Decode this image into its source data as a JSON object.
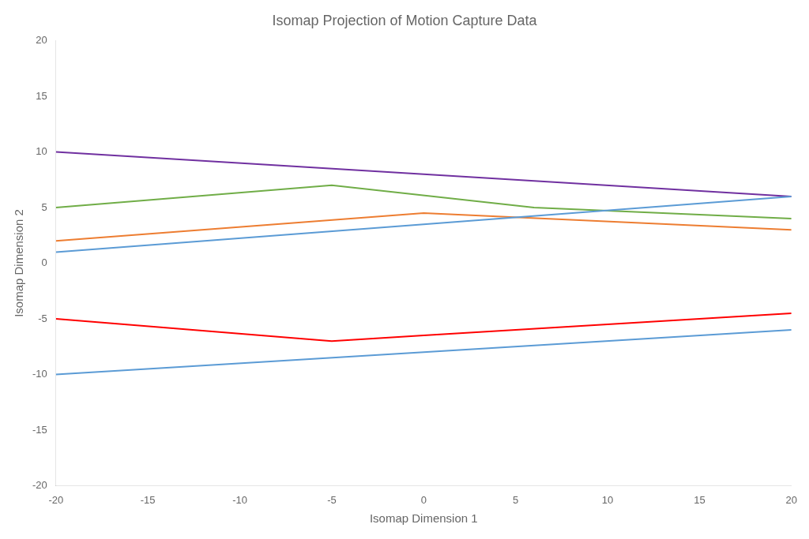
{
  "chart_data": {
    "type": "line",
    "title": "Isomap Projection of Motion Capture Data",
    "xlabel": "Isomap Dimension 1",
    "ylabel": "Isomap Dimension 2",
    "xlim": [
      -20,
      20
    ],
    "ylim": [
      -20,
      20
    ],
    "xticks": [
      -20,
      -15,
      -10,
      -5,
      0,
      5,
      10,
      15,
      20
    ],
    "yticks": [
      -20,
      -15,
      -10,
      -5,
      0,
      5,
      10,
      15,
      20
    ],
    "grid": false,
    "series": [
      {
        "x": [
          -20,
          20
        ],
        "values": [
          1,
          6
        ],
        "color": "#5B9BD5"
      },
      {
        "x": [
          -20,
          20
        ],
        "values": [
          -10,
          -6
        ],
        "color": "#5B9BD5"
      },
      {
        "x": [
          -20,
          0,
          20
        ],
        "values": [
          2,
          4.5,
          3
        ],
        "color": "#ED7D31"
      },
      {
        "x": [
          -20,
          -5,
          6,
          20
        ],
        "values": [
          5,
          7,
          5,
          4
        ],
        "color": "#70AD47"
      },
      {
        "x": [
          -20,
          -5,
          0,
          20
        ],
        "values": [
          -5,
          -7,
          -6.5,
          -4.5
        ],
        "color": "#FF0000"
      },
      {
        "x": [
          -20,
          20
        ],
        "values": [
          10,
          6
        ],
        "color": "#7030A0"
      }
    ]
  }
}
